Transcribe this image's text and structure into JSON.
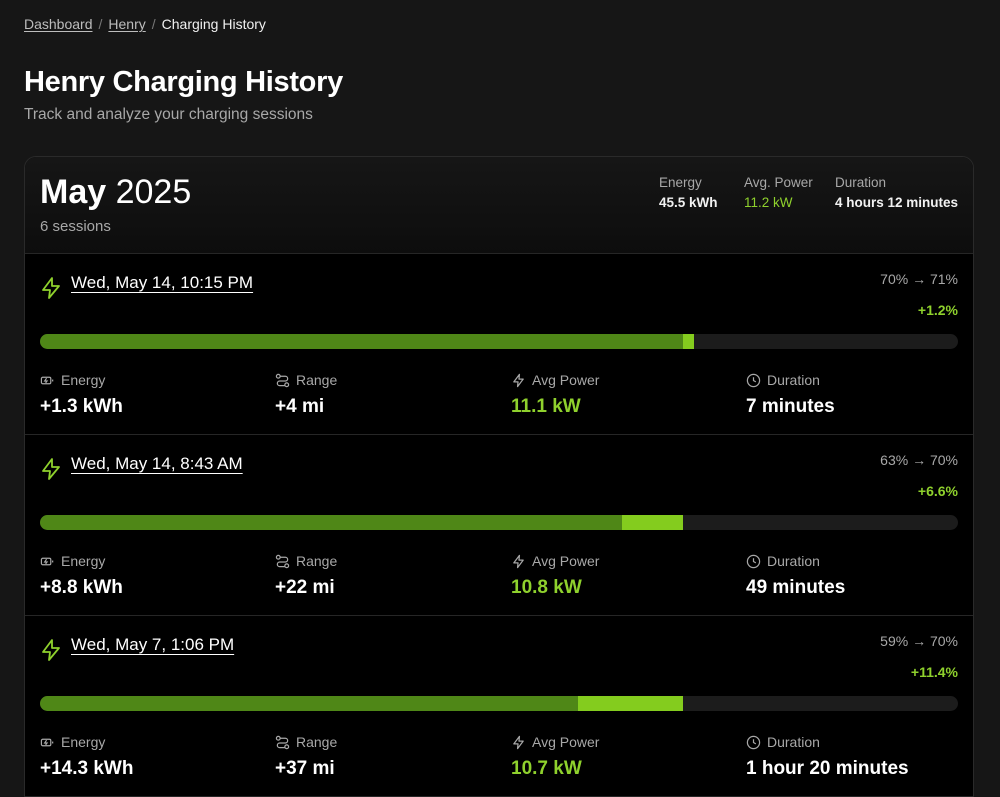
{
  "breadcrumb": {
    "items": [
      "Dashboard",
      "Henry"
    ],
    "separator": "/",
    "current": "Charging History"
  },
  "page": {
    "title": "Henry Charging History",
    "subtitle": "Track and analyze your charging sessions"
  },
  "month": {
    "name": "May",
    "year": "2025",
    "sessions_label": "6 sessions",
    "summary": {
      "energy_label": "Energy",
      "energy_value": "45.5 kWh",
      "power_label": "Avg. Power",
      "power_value": "11.2 kW",
      "duration_label": "Duration",
      "duration_value": "4 hours 12 minutes"
    }
  },
  "labels": {
    "energy": "Energy",
    "range": "Range",
    "avg_power": "Avg Power",
    "duration": "Duration"
  },
  "sessions": [
    {
      "date": "Wed, May 14, 10:15 PM",
      "soc_range": "70% → 71%",
      "soc_delta": "+1.2%",
      "soc_start": 70,
      "soc_end": 71.2,
      "energy": "+1.3 kWh",
      "range": "+4 mi",
      "avg_power": "11.1 kW",
      "duration": "7 minutes"
    },
    {
      "date": "Wed, May 14, 8:43 AM",
      "soc_range": "63% → 70%",
      "soc_delta": "+6.6%",
      "soc_start": 63.4,
      "soc_end": 70,
      "energy": "+8.8 kWh",
      "range": "+22 mi",
      "avg_power": "10.8 kW",
      "duration": "49 minutes"
    },
    {
      "date": "Wed, May 7, 1:06 PM",
      "soc_range": "59% → 70%",
      "soc_delta": "+11.4%",
      "soc_start": 58.6,
      "soc_end": 70,
      "energy": "+14.3 kWh",
      "range": "+37 mi",
      "avg_power": "10.7 kW",
      "duration": "1 hour 20 minutes"
    }
  ],
  "colors": {
    "accent": "#8fd12d",
    "bar_base": "#4f8717",
    "bar_added": "#84cc1e",
    "background": "#161616",
    "card": "#000000"
  },
  "icons": {
    "session": "lightning-bolt-icon",
    "energy": "battery-charging-icon",
    "range": "route-icon",
    "avg_power": "lightning-bolt-icon",
    "duration": "clock-icon"
  }
}
